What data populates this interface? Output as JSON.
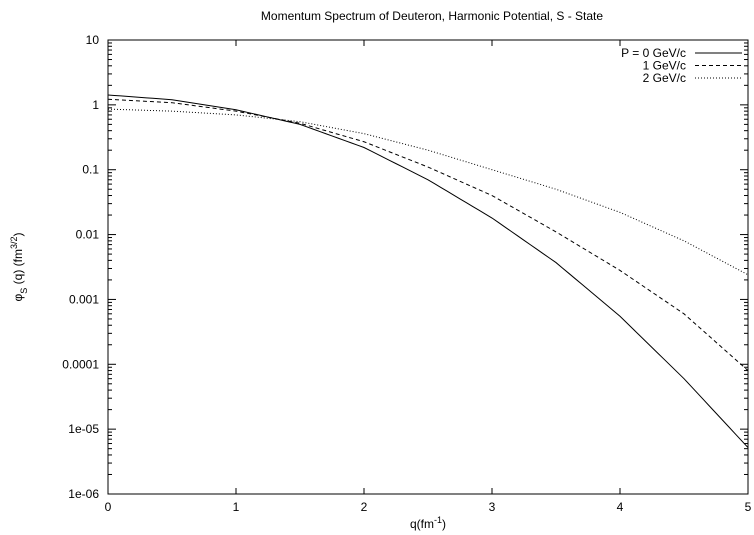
{
  "chart_data": {
    "type": "line",
    "title": "Momentum Spectrum of Deuteron, Harmonic Potential, S - State",
    "xlabel": "q(fm",
    "xlabel_sup": "-1",
    "xlabel_end": ")",
    "ylabel_phi": "φ",
    "ylabel_sub": "S",
    "ylabel_mid": " (q) (fm",
    "ylabel_sup": "3/2",
    "ylabel_end": ")",
    "xlim": [
      0,
      5
    ],
    "ylim": [
      1e-06,
      10
    ],
    "yscale": "log",
    "grid": false,
    "legend_position": "top-right",
    "x_ticks": [
      0,
      1,
      2,
      3,
      4,
      5
    ],
    "x_tick_labels": [
      "0",
      "1",
      "2",
      "3",
      "4",
      "5"
    ],
    "y_ticks": [
      1e-06,
      1e-05,
      0.0001,
      0.001,
      0.01,
      0.1,
      1,
      10
    ],
    "y_tick_labels": [
      "1e-06",
      "1e-05",
      "0.0001",
      "0.001",
      "0.01",
      "0.1",
      "1",
      "10"
    ],
    "series": [
      {
        "name": "P = 0 GeV/c",
        "style": "solid",
        "x": [
          0,
          0.5,
          1,
          1.5,
          2,
          2.5,
          3,
          3.5,
          4,
          4.5,
          5
        ],
        "y": [
          1.42,
          1.2,
          0.84,
          0.5,
          0.22,
          0.07,
          0.018,
          0.0037,
          0.00055,
          6e-05,
          5.2e-06
        ]
      },
      {
        "name": "1 GeV/c",
        "style": "dashed",
        "x": [
          0,
          0.5,
          1,
          1.5,
          2,
          2.5,
          3,
          3.5,
          4,
          4.5,
          5
        ],
        "y": [
          1.22,
          1.08,
          0.8,
          0.52,
          0.27,
          0.11,
          0.04,
          0.011,
          0.0028,
          0.0006,
          8e-05
        ]
      },
      {
        "name": "2 GeV/c",
        "style": "dotted",
        "x": [
          0,
          0.5,
          1,
          1.5,
          2,
          2.5,
          3,
          3.5,
          4,
          4.5,
          5
        ],
        "y": [
          0.86,
          0.8,
          0.7,
          0.55,
          0.36,
          0.2,
          0.1,
          0.05,
          0.022,
          0.008,
          0.0024
        ]
      }
    ]
  }
}
